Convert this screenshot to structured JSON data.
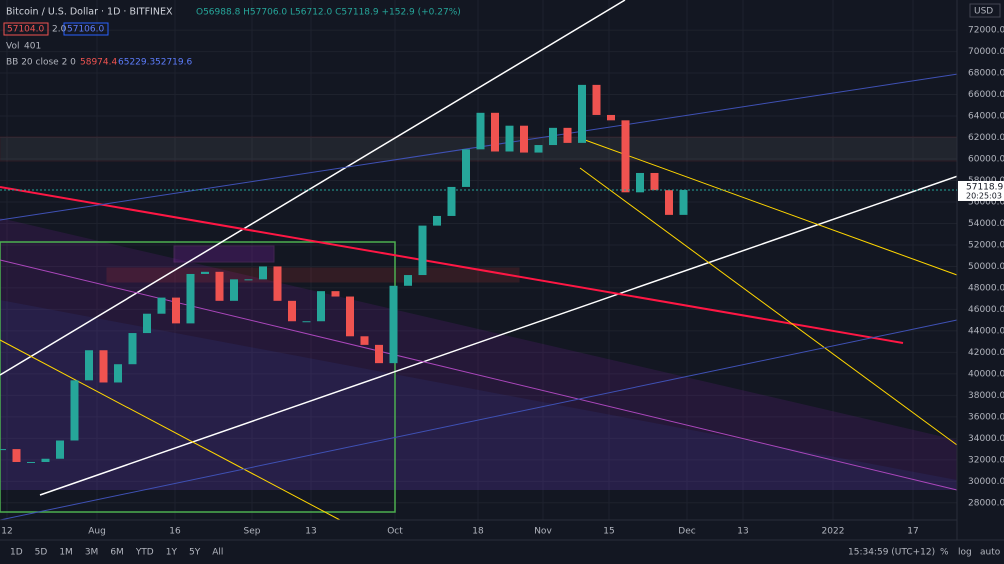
{
  "chart_data": {
    "type": "candlestick",
    "title": "Bitcoin / U.S. Dollar · 1D · BITFINEX",
    "ohlc_text": "O56988.8 H57706.0 L56712.0 C57118.9 +152.9 (+0.27%)",
    "bid": "57104.0",
    "spread": "2.0",
    "ask": "57106.0",
    "volume_label": "Vol",
    "volume_value": "401",
    "bb_label": "BB 20 close 2 0",
    "bb_values": [
      "58974.4",
      "65229.3",
      "52719.6"
    ],
    "currency": "USD",
    "series": [
      {
        "name": "BTCUSD",
        "color": "#26a69a",
        "down_color": "#ef5350",
        "values": [
          33000,
          31800,
          31800,
          32100,
          33800,
          39400,
          42200,
          39200,
          40900,
          43800,
          45600,
          47100,
          44700,
          49300,
          49500,
          46800,
          48800,
          48800,
          50000,
          46800,
          44900,
          44900,
          47700,
          47200,
          43500,
          42700,
          41000,
          48200,
          49200,
          53800,
          54700,
          57400,
          60900,
          64300,
          60700,
          63100,
          60600,
          61300,
          62900,
          61500,
          66900,
          64100,
          63600,
          56900,
          58700,
          57100,
          54800,
          57118
        ]
      }
    ],
    "last_price": "57118.9",
    "countdown": "20:25:03",
    "ylim": [
      26400,
      74800
    ],
    "yticks": [
      {
        "value": 72000,
        "label": "72000.0"
      },
      {
        "value": 70000,
        "label": "70000.0"
      },
      {
        "value": 68000,
        "label": "68000.0"
      },
      {
        "value": 66000,
        "label": "66000.0"
      },
      {
        "value": 64000,
        "label": "64000.0"
      },
      {
        "value": 62000,
        "label": "62000.0"
      },
      {
        "value": 60000,
        "label": "60000.0"
      },
      {
        "value": 58000,
        "label": "58000.0"
      },
      {
        "value": 56000,
        "label": "56000.0"
      },
      {
        "value": 54000,
        "label": "54000.0"
      },
      {
        "value": 52000,
        "label": "52000.0"
      },
      {
        "value": 50000,
        "label": "50000.0"
      },
      {
        "value": 48000,
        "label": "48000.0"
      },
      {
        "value": 46000,
        "label": "46000.0"
      },
      {
        "value": 44000,
        "label": "44000.0"
      },
      {
        "value": 42000,
        "label": "42000.0"
      },
      {
        "value": 40000,
        "label": "40000.0"
      },
      {
        "value": 38000,
        "label": "38000.0"
      },
      {
        "value": 36000,
        "label": "36000.0"
      },
      {
        "value": 34000,
        "label": "34000.0"
      },
      {
        "value": 32000,
        "label": "32000.0"
      },
      {
        "value": 30000,
        "label": "30000.0"
      },
      {
        "value": 28000,
        "label": "28000.0"
      }
    ],
    "xtick_labels": [
      "12",
      "Aug",
      "16",
      "Sep",
      "13",
      "Oct",
      "18",
      "Nov",
      "15",
      "Dec",
      "13",
      "2022",
      "17"
    ],
    "periods": [
      "1D",
      "5D",
      "1M",
      "3M",
      "6M",
      "YTD",
      "1Y",
      "5Y",
      "All"
    ],
    "clock": "15:34:59 (UTC+12)",
    "scale_buttons": [
      "%",
      "log",
      "auto"
    ],
    "grid": true
  }
}
